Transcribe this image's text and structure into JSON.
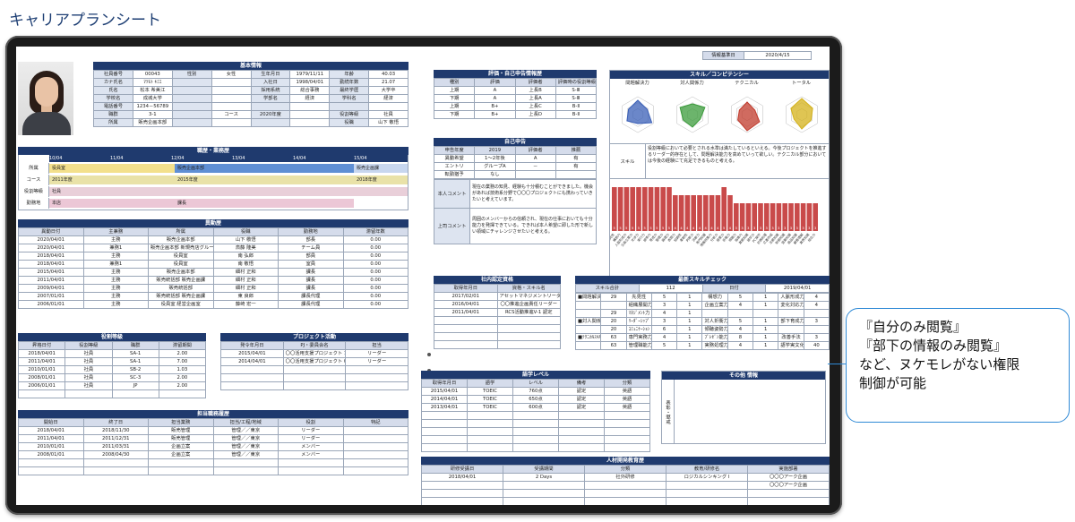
{
  "page_title": "キャリアプランシート",
  "callout": {
    "line1": "『自分のみ閲覧』",
    "line2": "『部下の情報のみ閲覧』",
    "line3": "など、ヌケモレがない権限",
    "line4": "制御が可能"
  },
  "base_date": {
    "label": "情報基準日",
    "value": "2020/4/15"
  },
  "basic": {
    "title": "基本情報",
    "rows": [
      [
        "社員番号",
        "00043",
        "性別",
        "女性",
        "生年月日",
        "1979/11/11",
        "年齢",
        "40.03"
      ],
      [
        "カナ氏名",
        "ﾏﾂﾓﾄ ｷﾐｴ",
        "",
        "",
        "入社日",
        "1998/04/01",
        "勤続年数",
        "21.07"
      ],
      [
        "氏名",
        "松本 希美江",
        "",
        "",
        "採用系統",
        "総合事務",
        "最終学歴",
        "大学卒"
      ],
      [
        "学校名",
        "成城大学",
        "",
        "",
        "学部名",
        "経済",
        "学科名",
        "経済"
      ],
      [
        "電話番号",
        "1234－56789",
        "",
        "",
        "",
        "",
        "",
        ""
      ],
      [
        "職群",
        "3-1",
        "",
        "コース",
        "2020年度",
        "",
        "役割等級",
        "社員"
      ],
      [
        "所属",
        "販売企画本部",
        "",
        "",
        "",
        "",
        "役職",
        "山下 敬悟"
      ]
    ]
  },
  "career": {
    "title": "職歴・業務歴",
    "years": [
      "10/04",
      "11/04",
      "12/04",
      "13/04",
      "14/04",
      "15/04"
    ],
    "rows": [
      {
        "label": "所属",
        "b1": "役員室",
        "b2": "販売企画本部",
        "b3": "販売企画課"
      },
      {
        "label": "コース",
        "b1": "2011年度",
        "b2": "2015年度",
        "b3": "2018年度"
      },
      {
        "label": "役割等級",
        "b1": "社員"
      },
      {
        "label": "勤務地",
        "b1": "本店",
        "b2": "課長"
      }
    ]
  },
  "transfer": {
    "title": "異動歴",
    "headers": [
      "異動日付",
      "主兼務",
      "所属",
      "役職",
      "勤務地",
      "滞留年数"
    ],
    "rows": [
      [
        "2020/04/01",
        "主務",
        "販売企画本部",
        "山下 敬悟",
        "部長",
        "0.00"
      ],
      [
        "2020/04/01",
        "兼務1",
        "販売企画本部 新規売店グループ",
        "斎藤 隆美",
        "チーム員",
        "0.00"
      ],
      [
        "2018/04/01",
        "主務",
        "役員室",
        "南 弘郎",
        "部員",
        "0.00"
      ],
      [
        "2018/04/01",
        "兼務1",
        "役員室",
        "南 敬悟",
        "室員",
        "0.00"
      ],
      [
        "2015/04/01",
        "主務",
        "販売企画本部",
        "細村 正和",
        "課長",
        "0.00"
      ],
      [
        "2011/04/01",
        "主務",
        "販売統括部 販売企画課",
        "細村 正和",
        "課長",
        "0.00"
      ],
      [
        "2009/04/01",
        "主務",
        "販売統括部",
        "細村 正和",
        "課長",
        "0.00"
      ],
      [
        "2007/01/01",
        "主務",
        "販売統括部 販売企画課",
        "東 良郎",
        "課長代理",
        "0.00"
      ],
      [
        "2006/01/01",
        "主務",
        "役員室 経営企画室",
        "藤崎 宏一",
        "課長代理",
        "0.00"
      ]
    ]
  },
  "role": {
    "title": "役割等級",
    "headers": [
      "昇格日付",
      "役割等級",
      "職群",
      "滞留期間"
    ],
    "rows": [
      [
        "2018/04/01",
        "社員",
        "SA-1",
        "2.00"
      ],
      [
        "2011/04/01",
        "社員",
        "SA-1",
        "7.00"
      ],
      [
        "2010/01/01",
        "社員",
        "SB-2",
        "1.03"
      ],
      [
        "2008/01/01",
        "社員",
        "SC-3",
        "2.00"
      ],
      [
        "2006/01/01",
        "社員",
        "JP",
        "2.00"
      ]
    ]
  },
  "project": {
    "title": "プロジェクト活動",
    "headers": [
      "発令年月日",
      "PJ・委員会名",
      "担当"
    ],
    "rows": [
      [
        "2015/04/01",
        "〇〇活用支援プロジェクト 10期",
        "リーダー"
      ],
      [
        "2014/04/01",
        "〇〇活用支援プロジェクト 09期",
        "リーダー"
      ]
    ]
  },
  "duty": {
    "title": "担当職務履歴",
    "headers": [
      "開始日",
      "終了日",
      "担当業務",
      "担当/工程/地域",
      "役割",
      "特記"
    ],
    "rows": [
      [
        "2018/04/01",
        "2018/11/30",
        "販売管理",
        "管理／／東京",
        "リーダー",
        ""
      ],
      [
        "2011/04/01",
        "2011/12/31",
        "販売管理",
        "管理／／東京",
        "リーダー",
        ""
      ],
      [
        "2010/01/01",
        "2011/03/31",
        "企画立案",
        "管理／／東京",
        "メンバー",
        ""
      ],
      [
        "2008/01/01",
        "2008/04/30",
        "企画立案",
        "管理／／東京",
        "メンバー",
        ""
      ]
    ]
  },
  "evaluation": {
    "title": "評価・自己申告情報歴",
    "headers": [
      "種別",
      "評価",
      "評価者",
      "評価時の役割等級"
    ],
    "rows": [
      [
        "上期",
        "A",
        "上長B",
        "S-Ⅲ"
      ],
      [
        "下期",
        "A",
        "上長A",
        "S-Ⅲ"
      ],
      [
        "上期",
        "B+",
        "上長C",
        "B-Ⅱ"
      ],
      [
        "下期",
        "B+",
        "上長D",
        "B-Ⅱ"
      ]
    ]
  },
  "self": {
    "title": "自己申告",
    "headers": [
      "申告年度",
      "2019",
      "評価者",
      "推薦"
    ],
    "rows": [
      [
        "異動希望",
        "1～2年後",
        "A",
        "有"
      ],
      [
        "エントリ",
        "グループA",
        "－",
        "有"
      ],
      [
        "転勤猶予",
        "なし",
        "",
        ""
      ]
    ],
    "me_label": "本人コメント",
    "me_text": "現在の業務の知見、経験も十分積むことができました。機会があれば技術系分野で〇〇〇プロジェクトにも携わっていきたいと考えています。",
    "boss_label": "上司コメント",
    "boss_text": "周囲のメンバーからの信頼され、現在の仕事においても十分能力を発揮できている。できれば本人希望に即した形で新しい領域にチャレンジさせたいと考える。"
  },
  "skill": {
    "title": "スキル／コンピテンシー",
    "tabs": [
      "問題解決力",
      "対人関係力",
      "テクニカル",
      "トータル"
    ],
    "radar_labels": [
      "リーダーシップ",
      "実行力",
      "コミュニケーション",
      "実務処理力",
      "管理業務力",
      "イノベーション力"
    ],
    "label": "スキル",
    "comment": "役割等級において必要とされる水準は満たしているといえる。今後プロジェクトを推進するリーダー的存在として、問題解決能力を高めていって欲しい。テクニカル部分においては今後の経験にて充足できるものと考える。",
    "chart_type": "bar",
    "bar_values": [
      5,
      5,
      5,
      5,
      5,
      5,
      5,
      5,
      5,
      5,
      4,
      4,
      4,
      4,
      4,
      4,
      4,
      4,
      5,
      4,
      3,
      3,
      3,
      3,
      3,
      3,
      3,
      3,
      3,
      3,
      3,
      3,
      3,
      3
    ],
    "categories": [
      "先見性",
      "構想力",
      "人脈形成力",
      "企画立案力",
      "交渉力",
      "実行力",
      "統率力",
      "育成力",
      "管理力",
      "論理力",
      "表現力",
      "協調性",
      "柔軟性",
      "判断力",
      "決断力",
      "専門知識",
      "情報収集力",
      "分析力",
      "提案力",
      "折衝力",
      "傾聴力",
      "指導力",
      "業務知識",
      "語学力",
      "PC操作",
      "計数処理",
      "文書作成",
      "法務知識",
      "財務知識",
      "営業知識",
      "商品知識",
      "顧客理解",
      "業界知識",
      "総合力"
    ]
  },
  "cert": {
    "title": "社内認定資格",
    "headers": [
      "取得年月日",
      "資格・スキル名"
    ],
    "rows": [
      [
        "2017/02/01",
        "アセットマネジメントリーダー"
      ],
      [
        "2016/04/01",
        "〇〇推進企画責任リーダー"
      ],
      [
        "2011/04/01",
        "RCS活動推進V-1 認定"
      ]
    ]
  },
  "latest": {
    "title": "最新スキルチェック",
    "h1": "スキル合計",
    "h1v": "112",
    "h2": "日付",
    "h2v": "2019/04/01",
    "rows": [
      [
        "■問題解決力",
        "29",
        "先見性",
        "5",
        "1",
        "構想力",
        "5",
        "1",
        "人脈形成力",
        "4"
      ],
      [
        "",
        "",
        "組織展開力",
        "3",
        "1",
        "企画立案力",
        "4",
        "1",
        "変化対応力",
        "4"
      ],
      [
        "",
        "29",
        "ﾏﾈｼﾞﾒﾝﾄ力",
        "4",
        "1",
        "",
        "",
        "",
        "",
        ""
      ],
      [
        "■対人関係力",
        "20",
        "ﾘｰﾀﾞｰｼｯﾌﾟ",
        "3",
        "1",
        "対人折衝力",
        "5",
        "1",
        "部下育成力",
        "3"
      ],
      [
        "",
        "20",
        "ｺﾐｭﾆｹｰｼｮﾝ",
        "6",
        "1",
        "傾聴姿勢力",
        "4",
        "1",
        "",
        ""
      ],
      [
        "■ﾃｸﾆｶﾙｽｷﾙ",
        "63",
        "専門実務力",
        "4",
        "1",
        "ﾌﾟﾚｾﾞﾝ能力",
        "8",
        "1",
        "改善手法",
        "3"
      ],
      [
        "",
        "63",
        "管理職能力",
        "5",
        "1",
        "実務処理力",
        "4",
        "1",
        "語学実文化",
        "40"
      ]
    ]
  },
  "lang": {
    "title": "語学レベル",
    "headers": [
      "取得年月日",
      "語学",
      "レベル",
      "備考",
      "分類"
    ],
    "rows": [
      [
        "2015/04/01",
        "TOEIC",
        "760点",
        "認定",
        "英語"
      ],
      [
        "2014/04/01",
        "TOEIC",
        "650点",
        "認定",
        "英語"
      ],
      [
        "2013/04/01",
        "TOEIC",
        "600点",
        "認定",
        "英語"
      ]
    ]
  },
  "other": {
    "title": "その他 情報",
    "side_label": "表彰・懲戒"
  },
  "training": {
    "title": "人材開発教育歴",
    "headers": [
      "研修受講日",
      "受講期間",
      "分類",
      "教育/研修名",
      "実施部署"
    ],
    "rows": [
      [
        "2018/04/01",
        "2 Days",
        "社外研修",
        "ロジカルシンキング Ⅰ",
        "〇〇〇アーク企画"
      ],
      [
        "",
        "",
        "",
        "",
        "〇〇〇アーク企画"
      ]
    ]
  }
}
